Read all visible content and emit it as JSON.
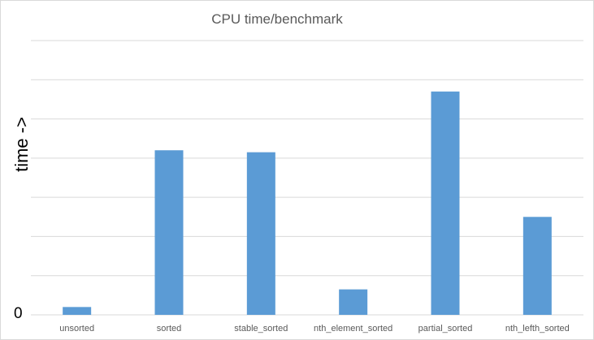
{
  "chart_data": {
    "type": "bar",
    "title": "CPU time/benchmark",
    "xlabel": "",
    "ylabel": "time ->",
    "y_tick_label": "0",
    "categories": [
      "unsorted",
      "sorted",
      "stable_sorted",
      "nth_element_sorted",
      "partial_sorted",
      "nth_lefth_sorted"
    ],
    "values": [
      0.2,
      4.2,
      4.15,
      0.65,
      5.7,
      2.5
    ],
    "ylim": [
      0,
      7
    ],
    "grid": true,
    "legend": "none",
    "bar_color": "#5b9bd5",
    "grid_color": "#d9d9d9"
  }
}
